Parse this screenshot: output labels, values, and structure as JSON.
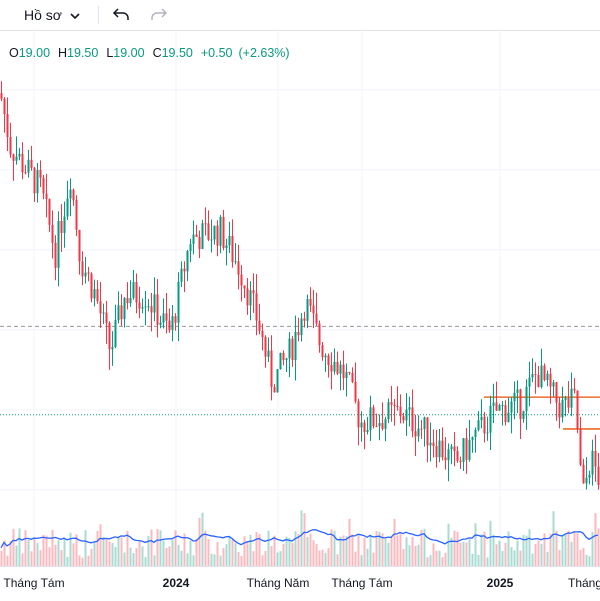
{
  "toolbar": {
    "profile_label": "Hồ sơ",
    "icons": [
      "chevron-down-icon",
      "undo-icon",
      "redo-icon"
    ]
  },
  "ohlc": {
    "open_key": "O",
    "open": "19.00",
    "high_key": "H",
    "high": "19.50",
    "low_key": "L",
    "low": "19.00",
    "close_key": "C",
    "close": "19.50",
    "change": "+0.50",
    "change_pct": "(+2.63%)"
  },
  "colors": {
    "up": "#089981",
    "down": "#f23645",
    "volume_ma": "#2962ff",
    "level_line": "#e65100",
    "grid": "#f0f3fa"
  },
  "xaxis": {
    "labels": [
      {
        "text": "Tháng Tám",
        "year": false
      },
      {
        "text": "2024",
        "year": true
      },
      {
        "text": "Tháng Năm",
        "year": false
      },
      {
        "text": "Tháng Tám",
        "year": false
      },
      {
        "text": "2025",
        "year": true
      },
      {
        "text": "Tháng",
        "year": false
      }
    ]
  },
  "chart_data": {
    "type": "candlestick",
    "price_anchors": [
      [
        0,
        25.5
      ],
      [
        10,
        24.0
      ],
      [
        22,
        23.5
      ],
      [
        40,
        22.8
      ],
      [
        55,
        21.0
      ],
      [
        70,
        23.2
      ],
      [
        80,
        20.8
      ],
      [
        95,
        19.8
      ],
      [
        110,
        18.2
      ],
      [
        125,
        19.8
      ],
      [
        145,
        19.8
      ],
      [
        170,
        18.7
      ],
      [
        190,
        21.4
      ],
      [
        220,
        21.6
      ],
      [
        240,
        20.5
      ],
      [
        258,
        19.0
      ],
      [
        272,
        17.3
      ],
      [
        290,
        18.2
      ],
      [
        305,
        19.6
      ],
      [
        320,
        18.4
      ],
      [
        345,
        17.5
      ],
      [
        360,
        16.2
      ],
      [
        380,
        16.3
      ],
      [
        400,
        16.5
      ],
      [
        430,
        15.8
      ],
      [
        455,
        15.0
      ],
      [
        475,
        15.8
      ],
      [
        495,
        16.5
      ],
      [
        520,
        16.7
      ],
      [
        537,
        17.6
      ],
      [
        560,
        16.6
      ],
      [
        575,
        16.8
      ],
      [
        582,
        14.0
      ],
      [
        590,
        15.2
      ],
      [
        600,
        14.5
      ]
    ],
    "levels": [
      {
        "price": 18.9,
        "style": "dashed"
      },
      {
        "price": 16.4,
        "style": "dotted"
      },
      {
        "price": 16.9,
        "style": "solid"
      },
      {
        "price": 16.0,
        "style": "solid"
      }
    ],
    "price_range": [
      13.0,
      27.0
    ],
    "volume_ma": true
  }
}
